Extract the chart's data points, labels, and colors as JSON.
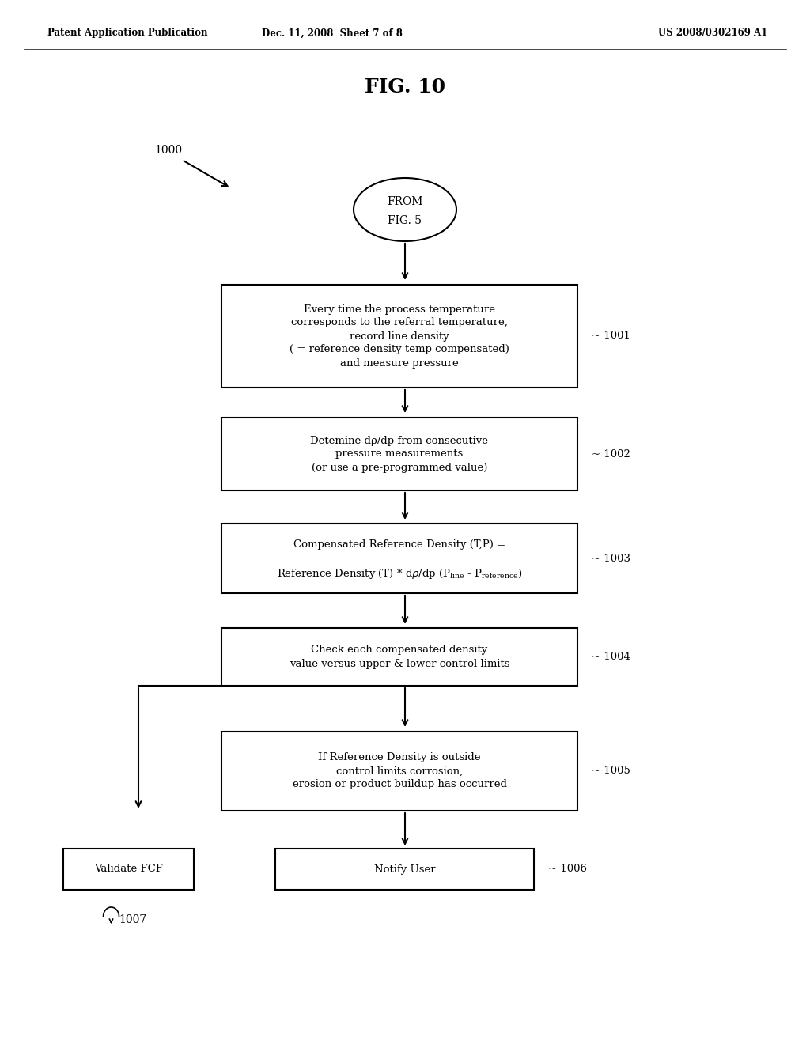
{
  "title": "FIG. 10",
  "header_left": "Patent Application Publication",
  "header_mid": "Dec. 11, 2008  Sheet 7 of 8",
  "header_right": "US 2008/0302169 A1",
  "label_1000": "1000",
  "box1_text": "Every time the process temperature\ncorresponds to the referral temperature,\nrecord line density\n( = reference density temp compensated)\nand measure pressure",
  "box1_label": "~ 1001",
  "box2_text": "Detemine dρ/dp from consecutive\npressure measurements\n(or use a pre-programmed value)",
  "box2_label": "~ 1002",
  "box3_line1": "Compensated Reference Density (T,P) =",
  "box3_line2": "Reference Density (T) * dρ/dp (P",
  "box3_line2_sub1": "line",
  "box3_line2_mid": " - P",
  "box3_line2_sub2": "reference",
  "box3_line2_end": ")",
  "box3_label": "~ 1003",
  "box4_text": "Check each compensated density\nvalue versus upper & lower control limits",
  "box4_label": "~ 1004",
  "box5_text": "If Reference Density is outside\ncontrol limits corrosion,\nerosion or product buildup has occurred",
  "box5_label": "~ 1005",
  "box6_text": "Notify User",
  "box6_label": "~ 1006",
  "box7_text": "Validate FCF",
  "box7_label": "1007",
  "bg_color": "#ffffff",
  "box_color": "#ffffff",
  "box_edge_color": "#000000",
  "text_color": "#000000",
  "arrow_color": "#000000"
}
